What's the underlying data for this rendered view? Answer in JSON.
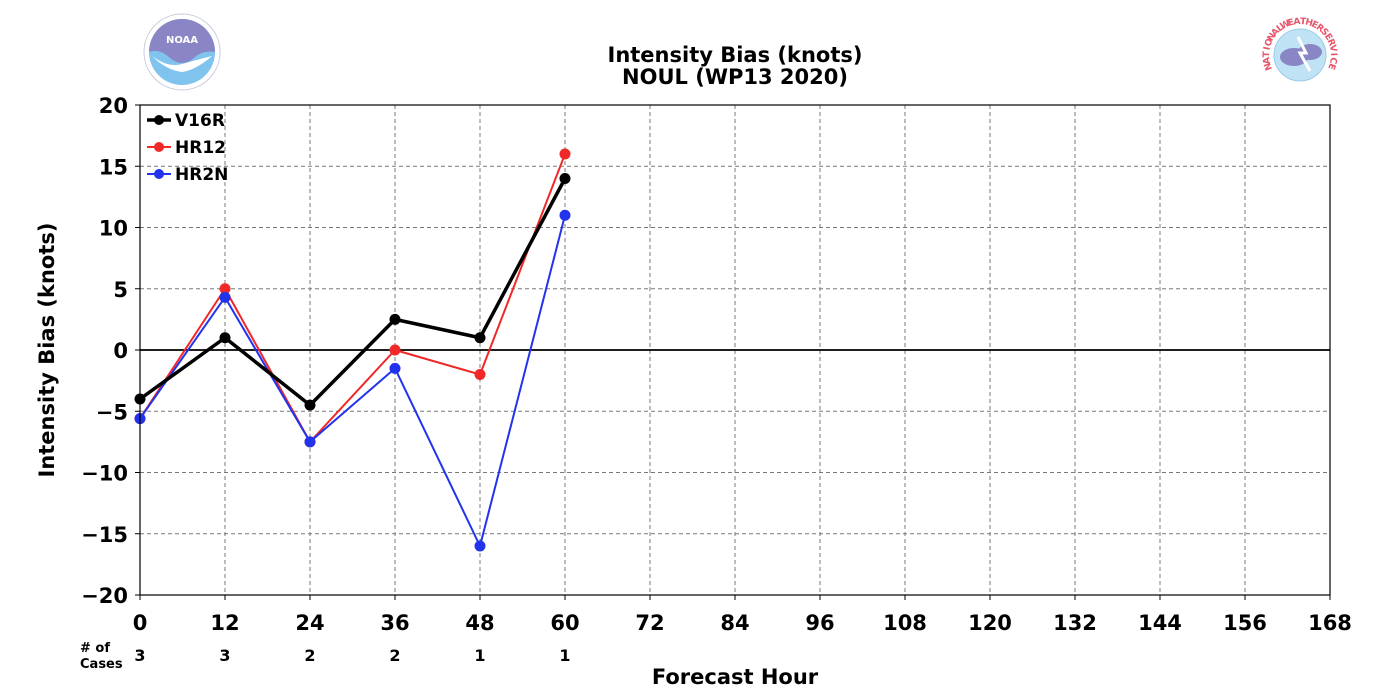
{
  "chart_data": {
    "type": "line",
    "title": "Intensity Bias (knots)",
    "subtitle": "NOUL (WP13 2020)",
    "xlabel": "Forecast Hour",
    "ylabel": "Intensity Bias (knots)",
    "xlim": [
      0,
      168
    ],
    "ylim": [
      -20,
      20
    ],
    "x_ticks": [
      0,
      12,
      24,
      36,
      48,
      60,
      72,
      84,
      96,
      108,
      120,
      132,
      144,
      156,
      168
    ],
    "x_tick_labels": [
      "0",
      "12",
      "24",
      "36",
      "48",
      "60",
      "72",
      "84",
      "96",
      "108",
      "120",
      "132",
      "144",
      "156",
      "168"
    ],
    "y_ticks": [
      -20,
      -15,
      -10,
      -5,
      0,
      5,
      10,
      15,
      20
    ],
    "y_tick_labels": [
      "−20",
      "−15",
      "−10",
      "−5",
      "0",
      "5",
      "10",
      "15",
      "20"
    ],
    "grid": true,
    "zero_line": true,
    "legend_position": "top-left",
    "x": [
      0,
      12,
      24,
      36,
      48,
      60
    ],
    "series": [
      {
        "name": "V16R",
        "color": "#000000",
        "values": [
          -4,
          1,
          -4.5,
          2.5,
          1,
          14
        ],
        "width": "thick"
      },
      {
        "name": "HR12",
        "color": "#f02828",
        "values": [
          -5.6,
          5,
          -7.5,
          0,
          -2,
          16
        ],
        "width": "thin"
      },
      {
        "name": "HR2N",
        "color": "#2233ee",
        "values": [
          -5.6,
          4.3,
          -7.5,
          -1.5,
          -16,
          11
        ],
        "width": "thin"
      }
    ],
    "cases": {
      "label_line1": "# of",
      "label_line2": "Cases",
      "x": [
        0,
        12,
        24,
        36,
        48,
        60
      ],
      "values": [
        "3",
        "3",
        "2",
        "2",
        "1",
        "1"
      ]
    }
  },
  "logos": {
    "left": {
      "icon": "noaa-logo",
      "text": "NOAA"
    },
    "right": {
      "icon": "nws-logo",
      "text": "NATIONAL WEATHER SERVICE"
    }
  }
}
